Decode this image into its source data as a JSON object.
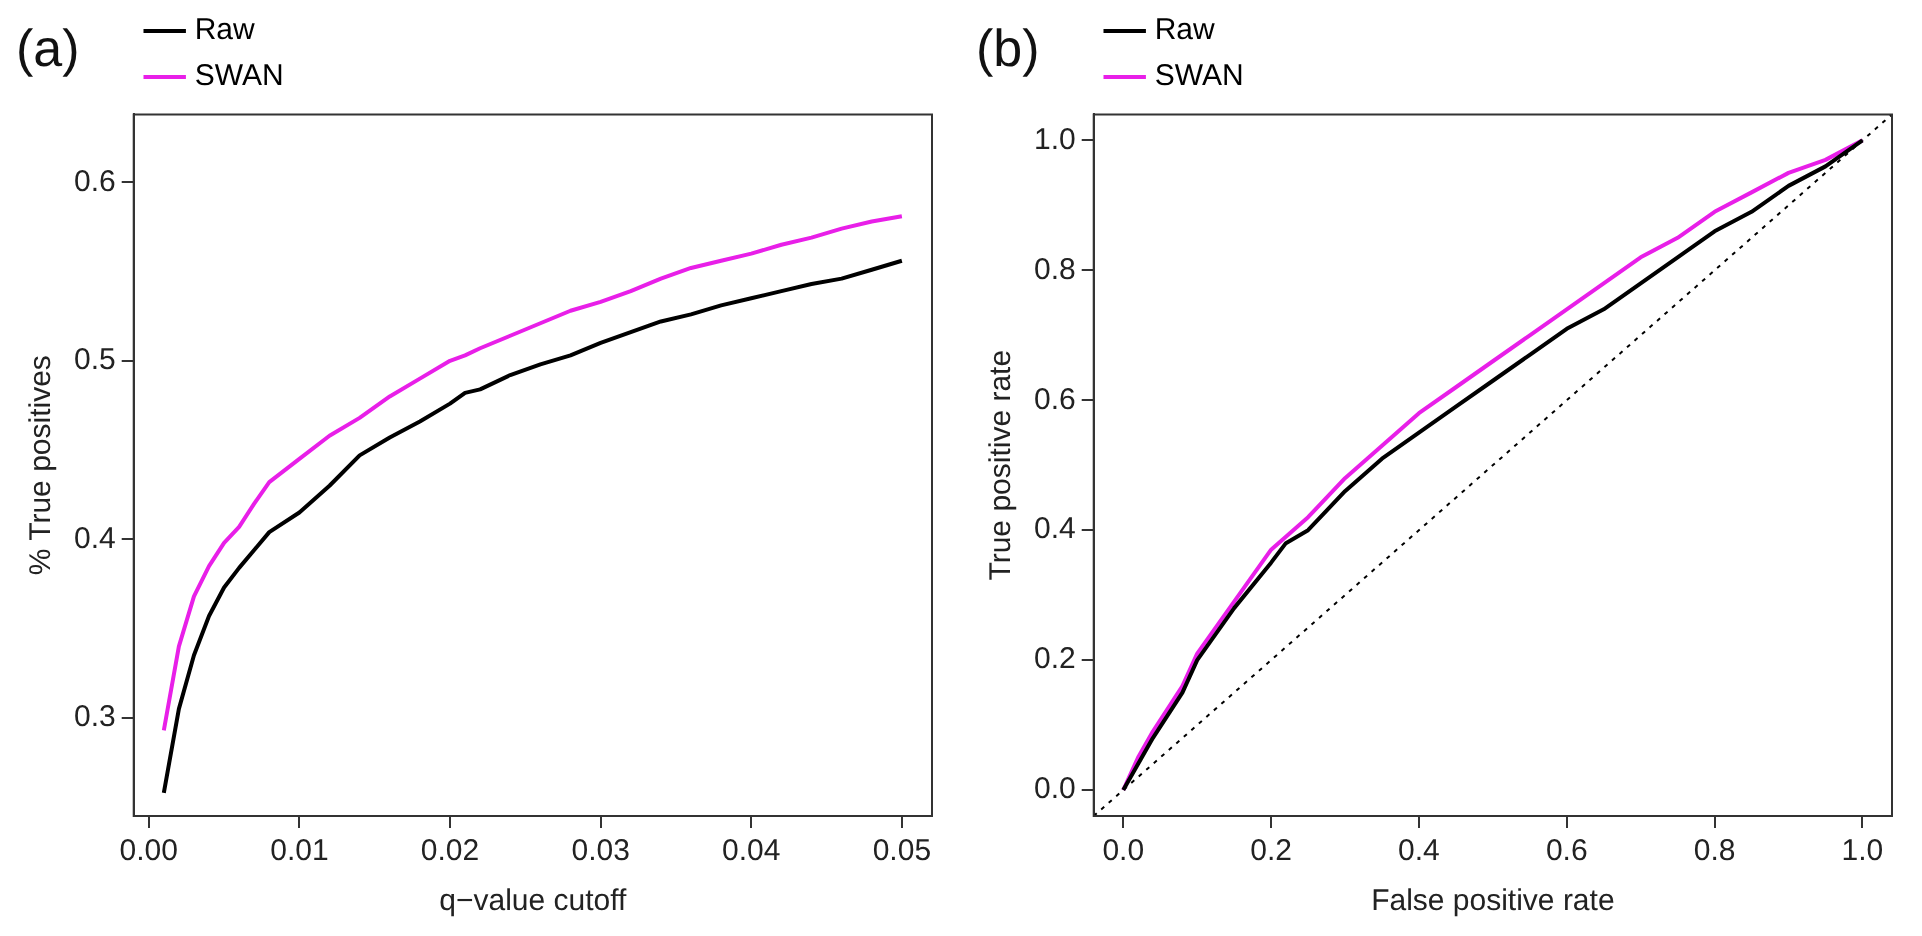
{
  "chart_data": [
    {
      "type": "line",
      "title": "(a)",
      "xlabel": "q−value cutoff",
      "ylabel": "% True positives",
      "x": [
        0.001,
        0.002,
        0.003,
        0.004,
        0.005,
        0.006,
        0.007,
        0.008,
        0.01,
        0.012,
        0.014,
        0.016,
        0.018,
        0.02,
        0.021,
        0.022,
        0.024,
        0.026,
        0.028,
        0.03,
        0.032,
        0.034,
        0.036,
        0.038,
        0.04,
        0.042,
        0.044,
        0.046,
        0.048,
        0.05
      ],
      "series": [
        {
          "name": "Raw",
          "color": "#000000",
          "values": [
            0.258,
            0.305,
            0.335,
            0.357,
            0.373,
            0.384,
            0.394,
            0.404,
            0.415,
            0.43,
            0.447,
            0.457,
            0.466,
            0.476,
            0.482,
            0.484,
            0.492,
            0.498,
            0.503,
            0.51,
            0.516,
            0.522,
            0.526,
            0.531,
            0.535,
            0.539,
            0.543,
            0.546,
            0.551,
            0.556
          ]
        },
        {
          "name": "SWAN",
          "color": "#e81fe8",
          "values": [
            0.293,
            0.34,
            0.368,
            0.385,
            0.398,
            0.407,
            0.42,
            0.432,
            0.445,
            0.458,
            0.468,
            0.48,
            0.49,
            0.5,
            0.503,
            0.507,
            0.514,
            0.521,
            0.528,
            0.533,
            0.539,
            0.546,
            0.552,
            0.556,
            0.56,
            0.565,
            0.569,
            0.574,
            0.578,
            0.581
          ]
        }
      ],
      "xlim": [
        -0.001,
        0.052
      ],
      "ylim": [
        0.245,
        0.638
      ],
      "xticks": [
        {
          "value": 0,
          "label": "0.00"
        },
        {
          "value": 0.01,
          "label": "0.01"
        },
        {
          "value": 0.02,
          "label": "0.02"
        },
        {
          "value": 0.03,
          "label": "0.03"
        },
        {
          "value": 0.04,
          "label": "0.04"
        },
        {
          "value": 0.05,
          "label": "0.05"
        }
      ],
      "yticks": [
        0.3,
        0.4,
        0.5,
        0.6
      ],
      "legend": "top left",
      "grid": false,
      "marker": "none",
      "line_style": "solid"
    },
    {
      "type": "line",
      "title": "(b)",
      "xlabel": "False positive rate",
      "ylabel": "True positive rate",
      "x": [
        0,
        0.02,
        0.04,
        0.08,
        0.1,
        0.15,
        0.2,
        0.22,
        0.25,
        0.3,
        0.35,
        0.4,
        0.45,
        0.5,
        0.55,
        0.6,
        0.65,
        0.7,
        0.75,
        0.8,
        0.85,
        0.9,
        0.95,
        1
      ],
      "series": [
        {
          "name": "Raw",
          "color": "#000000",
          "values": [
            0,
            0.04,
            0.08,
            0.15,
            0.2,
            0.28,
            0.35,
            0.38,
            0.4,
            0.46,
            0.51,
            0.55,
            0.59,
            0.63,
            0.67,
            0.71,
            0.74,
            0.78,
            0.82,
            0.86,
            0.89,
            0.93,
            0.96,
            1
          ]
        },
        {
          "name": "SWAN",
          "color": "#e81fe8",
          "values": [
            0,
            0.05,
            0.09,
            0.16,
            0.21,
            0.29,
            0.37,
            0.39,
            0.42,
            0.48,
            0.53,
            0.58,
            0.62,
            0.66,
            0.7,
            0.74,
            0.78,
            0.82,
            0.85,
            0.89,
            0.92,
            0.95,
            0.97,
            1
          ]
        },
        {
          "color": "#000000",
          "line_style": "dotted",
          "x": [
            -0.04,
            1.04
          ],
          "values": [
            -0.04,
            1.04
          ]
        }
      ],
      "xlim": [
        -0.04,
        1.04
      ],
      "ylim": [
        -0.04,
        1.04
      ],
      "xticks": [
        {
          "value": 0,
          "label": "0.0"
        },
        {
          "value": 0.2,
          "label": "0.2"
        },
        {
          "value": 0.4,
          "label": "0.4"
        },
        {
          "value": 0.6,
          "label": "0.6"
        },
        {
          "value": 0.8,
          "label": "0.8"
        },
        {
          "value": 1,
          "label": "1.0"
        }
      ],
      "yticks": [
        {
          "value": 0,
          "label": "0.0"
        },
        {
          "value": 0.2,
          "label": "0.2"
        },
        {
          "value": 0.4,
          "label": "0.4"
        },
        {
          "value": 0.6,
          "label": "0.6"
        },
        {
          "value": 0.8,
          "label": "0.8"
        },
        {
          "value": 1,
          "label": "1.0"
        }
      ],
      "legend": "top left",
      "grid": false,
      "marker": "none",
      "line_style": "solid"
    }
  ]
}
